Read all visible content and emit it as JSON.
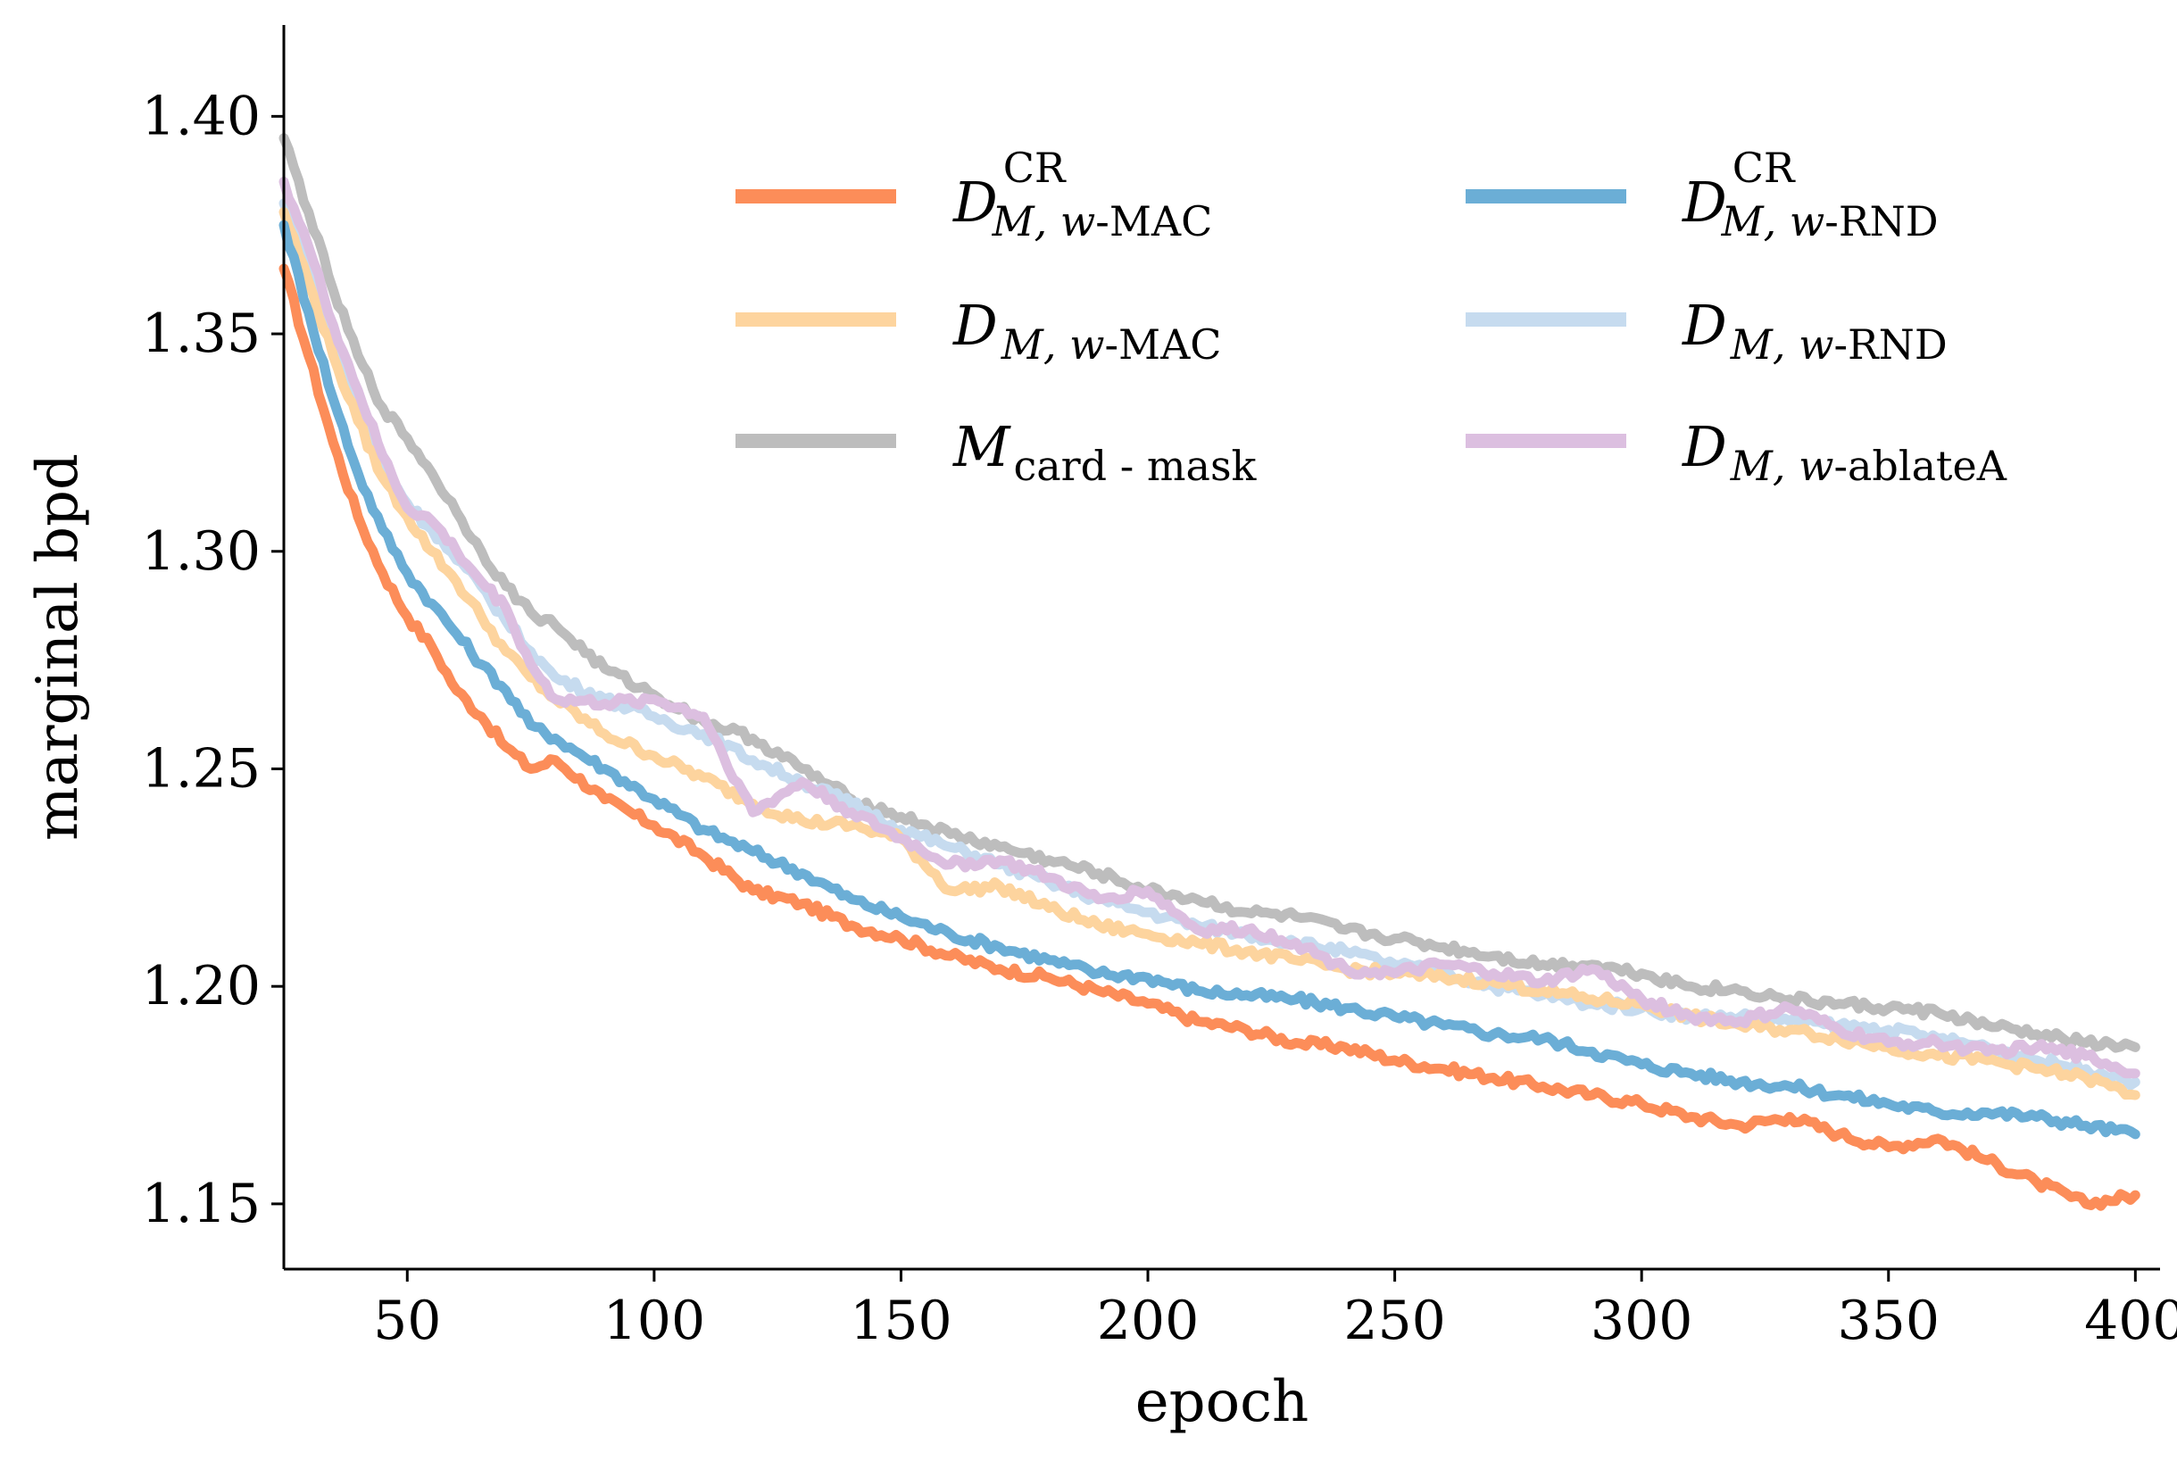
{
  "chart_data": {
    "type": "line",
    "title": "",
    "xlabel": "epoch",
    "ylabel": "marginal bpd",
    "xlim": [
      25,
      405
    ],
    "ylim": [
      1.135,
      1.421
    ],
    "xticks": [
      50,
      100,
      150,
      200,
      250,
      300,
      350,
      400
    ],
    "yticks": [
      1.15,
      1.2,
      1.25,
      1.3,
      1.35,
      1.4
    ],
    "xtick_labels": [
      "50",
      "100",
      "150",
      "200",
      "250",
      "300",
      "350",
      "400"
    ],
    "ytick_labels": [
      "1.15",
      "1.20",
      "1.25",
      "1.30",
      "1.35",
      "1.40"
    ],
    "grid": false,
    "legend_position": "top-right",
    "series": [
      {
        "name": "D^CR_{M,w}-MAC",
        "legend": {
          "main": "D",
          "sup": "CR",
          "sub": "M, w",
          "suffix": "-MAC"
        },
        "color": "#fc8d59",
        "x": [
          25,
          30,
          35,
          40,
          45,
          50,
          55,
          60,
          65,
          70,
          75,
          80,
          90,
          100,
          110,
          120,
          130,
          140,
          150,
          160,
          170,
          180,
          190,
          200,
          210,
          220,
          230,
          240,
          250,
          260,
          270,
          280,
          290,
          300,
          310,
          320,
          330,
          340,
          350,
          360,
          370,
          380,
          390,
          400
        ],
        "values": [
          1.365,
          1.345,
          1.325,
          1.308,
          1.295,
          1.285,
          1.278,
          1.268,
          1.262,
          1.255,
          1.25,
          1.252,
          1.243,
          1.237,
          1.23,
          1.222,
          1.219,
          1.214,
          1.211,
          1.207,
          1.204,
          1.202,
          1.199,
          1.196,
          1.192,
          1.19,
          1.187,
          1.186,
          1.183,
          1.181,
          1.179,
          1.177,
          1.175,
          1.173,
          1.17,
          1.168,
          1.17,
          1.166,
          1.163,
          1.165,
          1.16,
          1.155,
          1.15,
          1.152
        ]
      },
      {
        "name": "D^CR_{M,w}-RND",
        "legend": {
          "main": "D",
          "sup": "CR",
          "sub": "M, w",
          "suffix": "-RND"
        },
        "color": "#6baed6",
        "x": [
          25,
          30,
          35,
          40,
          45,
          50,
          55,
          60,
          65,
          70,
          75,
          80,
          90,
          100,
          110,
          120,
          130,
          140,
          150,
          160,
          170,
          180,
          190,
          200,
          210,
          220,
          230,
          240,
          250,
          260,
          270,
          280,
          290,
          300,
          310,
          320,
          330,
          340,
          350,
          360,
          370,
          380,
          390,
          400
        ],
        "values": [
          1.375,
          1.355,
          1.335,
          1.318,
          1.305,
          1.295,
          1.288,
          1.281,
          1.274,
          1.268,
          1.26,
          1.257,
          1.25,
          1.243,
          1.236,
          1.231,
          1.226,
          1.22,
          1.216,
          1.212,
          1.209,
          1.206,
          1.203,
          1.202,
          1.199,
          1.198,
          1.197,
          1.195,
          1.193,
          1.191,
          1.189,
          1.188,
          1.185,
          1.182,
          1.18,
          1.178,
          1.177,
          1.175,
          1.173,
          1.171,
          1.171,
          1.17,
          1.168,
          1.166
        ]
      },
      {
        "name": "D_{M,w}-MAC",
        "legend": {
          "main": "D",
          "sup": "",
          "sub": "M, w",
          "suffix": "-MAC"
        },
        "color": "#fdd49e",
        "x": [
          25,
          30,
          35,
          40,
          45,
          50,
          55,
          60,
          65,
          70,
          75,
          80,
          90,
          100,
          110,
          120,
          130,
          140,
          150,
          160,
          170,
          180,
          190,
          200,
          210,
          220,
          230,
          240,
          250,
          260,
          270,
          280,
          290,
          300,
          310,
          320,
          330,
          340,
          350,
          360,
          370,
          380,
          390,
          400
        ],
        "values": [
          1.378,
          1.362,
          1.345,
          1.33,
          1.317,
          1.308,
          1.3,
          1.293,
          1.285,
          1.277,
          1.271,
          1.266,
          1.258,
          1.253,
          1.248,
          1.242,
          1.238,
          1.237,
          1.234,
          1.222,
          1.223,
          1.218,
          1.214,
          1.212,
          1.21,
          1.208,
          1.206,
          1.204,
          1.203,
          1.202,
          1.201,
          1.199,
          1.197,
          1.196,
          1.193,
          1.191,
          1.19,
          1.188,
          1.186,
          1.184,
          1.183,
          1.181,
          1.179,
          1.175
        ]
      },
      {
        "name": "D_{M,w}-RND",
        "legend": {
          "main": "D",
          "sup": "",
          "sub": "M, w",
          "suffix": "-RND"
        },
        "color": "#c6dbef",
        "x": [
          25,
          30,
          35,
          40,
          45,
          50,
          55,
          60,
          65,
          70,
          75,
          80,
          90,
          100,
          110,
          120,
          130,
          140,
          150,
          160,
          170,
          180,
          190,
          200,
          210,
          220,
          230,
          240,
          250,
          260,
          270,
          280,
          290,
          300,
          310,
          320,
          330,
          340,
          350,
          360,
          370,
          380,
          390,
          400
        ],
        "values": [
          1.38,
          1.365,
          1.348,
          1.333,
          1.32,
          1.311,
          1.305,
          1.298,
          1.292,
          1.284,
          1.277,
          1.271,
          1.266,
          1.262,
          1.258,
          1.252,
          1.247,
          1.242,
          1.236,
          1.232,
          1.228,
          1.224,
          1.22,
          1.217,
          1.214,
          1.212,
          1.21,
          1.208,
          1.205,
          1.203,
          1.2,
          1.198,
          1.196,
          1.195,
          1.193,
          1.193,
          1.192,
          1.191,
          1.19,
          1.188,
          1.186,
          1.183,
          1.181,
          1.178
        ]
      },
      {
        "name": "M_{card-mask}",
        "legend": {
          "main": "M",
          "sup": "",
          "sub": "card - mask",
          "suffix": ""
        },
        "color": "#bdbdbd",
        "x": [
          25,
          30,
          35,
          40,
          45,
          50,
          55,
          60,
          65,
          70,
          75,
          80,
          90,
          100,
          110,
          120,
          130,
          140,
          150,
          160,
          170,
          180,
          190,
          200,
          210,
          220,
          230,
          240,
          250,
          260,
          270,
          280,
          290,
          300,
          310,
          320,
          330,
          340,
          350,
          360,
          370,
          380,
          390,
          400
        ],
        "values": [
          1.395,
          1.378,
          1.36,
          1.345,
          1.333,
          1.326,
          1.318,
          1.309,
          1.3,
          1.292,
          1.286,
          1.283,
          1.273,
          1.267,
          1.261,
          1.257,
          1.25,
          1.243,
          1.239,
          1.235,
          1.232,
          1.229,
          1.226,
          1.222,
          1.22,
          1.217,
          1.216,
          1.213,
          1.211,
          1.209,
          1.207,
          1.205,
          1.205,
          1.203,
          1.2,
          1.199,
          1.197,
          1.196,
          1.195,
          1.194,
          1.191,
          1.189,
          1.187,
          1.186
        ]
      },
      {
        "name": "D_{M,w}-ablateA",
        "legend": {
          "main": "D",
          "sup": "",
          "sub": "M, w",
          "suffix": "-ablateA"
        },
        "color": "#dcbfe0",
        "x": [
          25,
          30,
          35,
          40,
          45,
          50,
          55,
          60,
          65,
          70,
          75,
          80,
          90,
          100,
          110,
          120,
          130,
          140,
          150,
          160,
          170,
          180,
          190,
          200,
          210,
          220,
          230,
          240,
          250,
          260,
          270,
          280,
          290,
          300,
          310,
          320,
          330,
          340,
          350,
          360,
          370,
          380,
          390,
          400
        ],
        "values": [
          1.385,
          1.37,
          1.352,
          1.337,
          1.322,
          1.31,
          1.307,
          1.3,
          1.293,
          1.287,
          1.274,
          1.266,
          1.265,
          1.266,
          1.262,
          1.24,
          1.247,
          1.24,
          1.234,
          1.228,
          1.229,
          1.225,
          1.22,
          1.222,
          1.213,
          1.213,
          1.21,
          1.204,
          1.203,
          1.205,
          1.203,
          1.201,
          1.204,
          1.197,
          1.193,
          1.192,
          1.195,
          1.19,
          1.187,
          1.187,
          1.185,
          1.186,
          1.184,
          1.18
        ]
      }
    ]
  }
}
